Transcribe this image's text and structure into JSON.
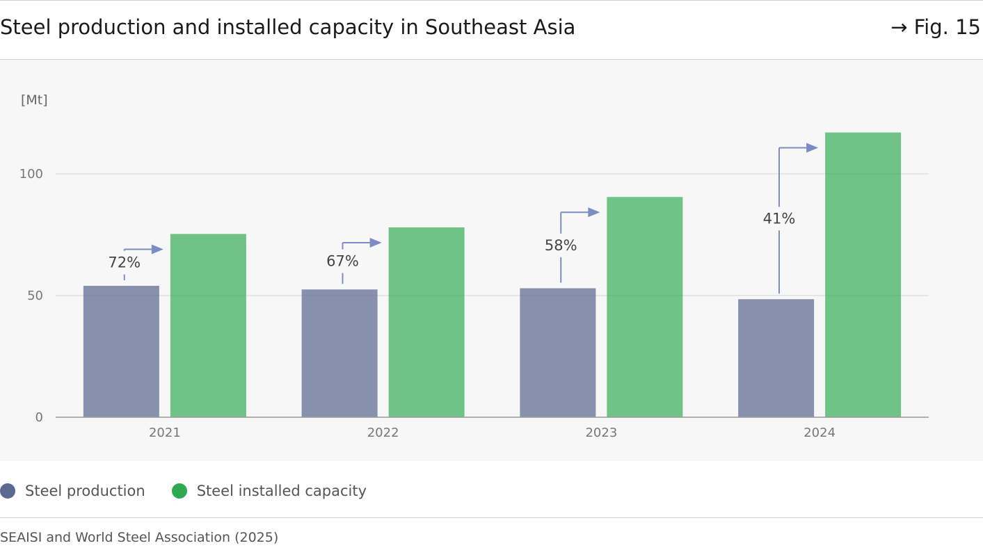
{
  "header": {
    "title": "Steel production and installed capacity in Southeast Asia",
    "fig_ref": "→ Fig. 15"
  },
  "chart_data": {
    "type": "bar",
    "unit_label": "[Mt]",
    "categories": [
      "2021",
      "2022",
      "2023",
      "2024"
    ],
    "series": [
      {
        "name": "Steel production",
        "color": "#5b6990",
        "values": [
          54,
          52.5,
          53,
          48.5
        ]
      },
      {
        "name": "Steel installed capacity",
        "color": "#2ea94f",
        "values": [
          75.3,
          78,
          90.5,
          117
        ]
      }
    ],
    "annotations": [
      "72%",
      "67%",
      "58%",
      "41%"
    ],
    "yticks": [
      0,
      50,
      100
    ],
    "ylim": [
      0,
      125
    ],
    "grid": true,
    "legend_position": "bottom-left"
  },
  "source": "SEAISI and World Steel Association (2025)"
}
